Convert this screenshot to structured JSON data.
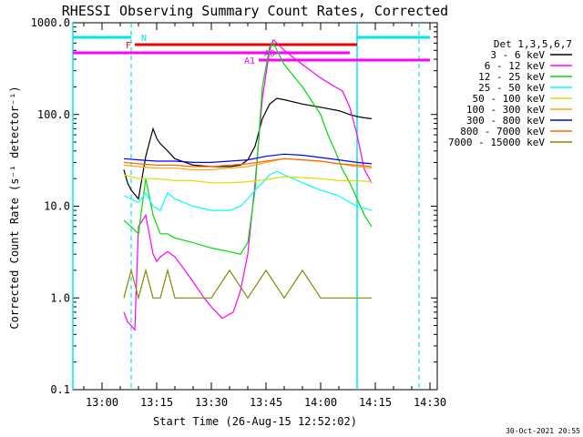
{
  "chart_data": {
    "type": "line",
    "title": "RHESSI Observing Summary Count Rates, Corrected",
    "xlabel": "Start Time (26-Aug-15 12:52:02)",
    "ylabel": "Corrected Count Rate (s⁻¹ detector⁻¹)",
    "footer": "30-Oct-2021 20:55",
    "y_scale": "log",
    "ylim": [
      0.1,
      1000
    ],
    "xlim": [
      "12:52",
      "14:32"
    ],
    "y_tick_labels": [
      "0.1",
      "1.0",
      "10.0",
      "100.0",
      "1000.0"
    ],
    "y_ticks": [
      0.1,
      1,
      10,
      100,
      1000
    ],
    "x_tick_labels": [
      "13:00",
      "13:15",
      "13:30",
      "13:45",
      "14:00",
      "14:15",
      "14:30"
    ],
    "x_ticks": [
      "13:00",
      "13:15",
      "13:30",
      "13:45",
      "14:00",
      "14:15",
      "14:30"
    ],
    "legend_title": "Det 1,3,5,6,7",
    "legend_position": "right",
    "series": [
      {
        "name": "3 - 6 keV",
        "color": "#000000",
        "x": [
          "13:06",
          "13:07",
          "13:08",
          "13:10",
          "13:12",
          "13:14",
          "13:15",
          "13:16",
          "13:18",
          "13:20",
          "13:25",
          "13:30",
          "13:35",
          "13:38",
          "13:40",
          "13:42",
          "13:44",
          "13:46",
          "13:48",
          "13:50",
          "13:55",
          "14:00",
          "14:05",
          "14:08",
          "14:10",
          "14:12",
          "14:14"
        ],
        "values": [
          25,
          18,
          15,
          12,
          35,
          70,
          55,
          48,
          40,
          33,
          28,
          27,
          27,
          28,
          32,
          45,
          90,
          130,
          150,
          145,
          130,
          120,
          110,
          100,
          95,
          92,
          90
        ]
      },
      {
        "name": "6 - 12 keV",
        "color": "#ff00ff",
        "x": [
          "13:06",
          "13:07",
          "13:08",
          "13:09",
          "13:10",
          "13:12",
          "13:14",
          "13:15",
          "13:16",
          "13:18",
          "13:20",
          "13:22",
          "13:25",
          "13:28",
          "13:30",
          "13:33",
          "13:36",
          "13:38",
          "13:40",
          "13:42",
          "13:44",
          "13:46",
          "13:47",
          "13:48",
          "13:50",
          "13:55",
          "14:00",
          "14:04",
          "14:06",
          "14:08",
          "14:10",
          "14:12",
          "14:14"
        ],
        "values": [
          0.7,
          0.55,
          0.5,
          0.45,
          6,
          8,
          3,
          2.5,
          2.8,
          3.2,
          2.8,
          2.2,
          1.5,
          1,
          0.8,
          0.6,
          0.7,
          1.2,
          3,
          18,
          150,
          500,
          650,
          600,
          500,
          350,
          250,
          200,
          180,
          120,
          60,
          25,
          18
        ]
      },
      {
        "name": "12 - 25 keV",
        "color": "#00dd00",
        "x": [
          "13:06",
          "13:08",
          "13:10",
          "13:12",
          "13:14",
          "13:16",
          "13:18",
          "13:20",
          "13:25",
          "13:30",
          "13:35",
          "13:38",
          "13:40",
          "13:42",
          "13:44",
          "13:46",
          "13:47",
          "13:48",
          "13:50",
          "13:55",
          "14:00",
          "14:02",
          "14:04",
          "14:06",
          "14:08",
          "14:10",
          "14:12",
          "14:14"
        ],
        "values": [
          7,
          6,
          5,
          20,
          8,
          5,
          5,
          4.5,
          4,
          3.5,
          3.2,
          3,
          4,
          15,
          200,
          550,
          600,
          500,
          350,
          200,
          100,
          60,
          40,
          25,
          18,
          12,
          8,
          6
        ]
      },
      {
        "name": "25 - 50 keV",
        "color": "#00ffff",
        "x": [
          "13:06",
          "13:08",
          "13:10",
          "13:12",
          "13:14",
          "13:16",
          "13:18",
          "13:20",
          "13:25",
          "13:30",
          "13:35",
          "13:38",
          "13:40",
          "13:42",
          "13:44",
          "13:46",
          "13:48",
          "13:50",
          "13:55",
          "14:00",
          "14:05",
          "14:08",
          "14:10",
          "14:12",
          "14:14"
        ],
        "values": [
          13,
          12,
          11,
          14,
          10,
          9,
          14,
          12,
          10,
          9,
          9,
          10,
          12,
          15,
          18,
          22,
          24,
          22,
          18,
          15,
          13,
          11,
          10,
          9.5,
          9
        ]
      },
      {
        "name": "50 - 100 keV",
        "color": "#dddd00",
        "x": [
          "13:06",
          "13:10",
          "13:15",
          "13:20",
          "13:25",
          "13:30",
          "13:35",
          "13:40",
          "13:45",
          "13:50",
          "13:55",
          "14:00",
          "14:05",
          "14:10",
          "14:14"
        ],
        "values": [
          22,
          20,
          20,
          19,
          19,
          18,
          18,
          18.5,
          19.5,
          21,
          20.5,
          20,
          19,
          19,
          18.5
        ]
      },
      {
        "name": "100 - 300 keV",
        "color": "#ffa500",
        "x": [
          "13:06",
          "13:10",
          "13:15",
          "13:20",
          "13:25",
          "13:30",
          "13:35",
          "13:40",
          "13:45",
          "13:50",
          "13:55",
          "14:00",
          "14:05",
          "14:10",
          "14:14"
        ],
        "values": [
          28,
          27,
          26,
          26,
          25,
          25,
          26,
          27,
          30,
          33,
          32,
          31,
          29,
          27,
          26
        ]
      },
      {
        "name": "300 - 800 keV",
        "color": "#0000ff",
        "x": [
          "13:06",
          "13:10",
          "13:15",
          "13:20",
          "13:25",
          "13:30",
          "13:35",
          "13:40",
          "13:45",
          "13:50",
          "13:55",
          "14:00",
          "14:05",
          "14:10",
          "14:14"
        ],
        "values": [
          33,
          32,
          31,
          31,
          30,
          30,
          31,
          32,
          35,
          37,
          36,
          34,
          32,
          30,
          29
        ]
      },
      {
        "name": "800 - 7000 keV",
        "color": "#ff6600",
        "x": [
          "13:06",
          "13:10",
          "13:15",
          "13:20",
          "13:25",
          "13:30",
          "13:35",
          "13:40",
          "13:45",
          "13:50",
          "13:55",
          "14:00",
          "14:05",
          "14:10",
          "14:14"
        ],
        "values": [
          30,
          29,
          28,
          28,
          27,
          27,
          28,
          29,
          31,
          33,
          32,
          31,
          29,
          28,
          27
        ]
      },
      {
        "name": "7000 - 15000 keV",
        "color": "#888800",
        "x": [
          "13:06",
          "13:08",
          "13:10",
          "13:12",
          "13:14",
          "13:16",
          "13:18",
          "13:20",
          "13:25",
          "13:30",
          "13:35",
          "13:40",
          "13:45",
          "13:50",
          "13:55",
          "14:00",
          "14:05",
          "14:08",
          "14:10",
          "14:12",
          "14:14"
        ],
        "values": [
          1,
          2,
          1,
          2,
          1,
          1,
          2,
          1,
          1,
          1,
          2,
          1,
          2,
          1,
          2,
          1,
          1,
          1,
          1,
          1,
          1
        ]
      }
    ],
    "state_bars": [
      {
        "label": "N",
        "color": "#00e5ee",
        "segments": [
          [
            "12:52",
            "13:08"
          ],
          [
            "14:10",
            "14:30"
          ]
        ]
      },
      {
        "label": "F",
        "color": "#ee0000",
        "segments": [
          [
            "13:09",
            "14:10"
          ]
        ]
      },
      {
        "label": "A0",
        "color": "#ff00ff",
        "segments": [
          [
            "12:52",
            "14:08"
          ]
        ]
      },
      {
        "label": "A1",
        "color": "#ff00ff",
        "segments": [
          [
            "13:43",
            "14:30"
          ]
        ]
      }
    ],
    "vertical_lines": {
      "color": "#00e5ee",
      "dashed": [
        "13:08",
        "14:27"
      ],
      "solid": [
        "12:52",
        "14:10"
      ]
    }
  }
}
